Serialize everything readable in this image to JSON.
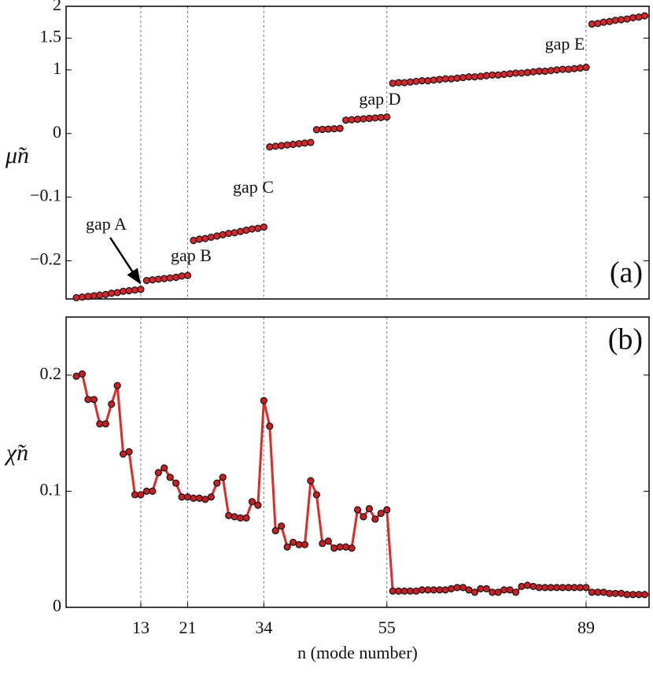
{
  "chart_data": [
    {
      "type": "scatter",
      "panel_label": "(a)",
      "ylabel": "μ̃n",
      "color": "#d7262b",
      "x": [
        2,
        3,
        4,
        5,
        6,
        7,
        8,
        9,
        10,
        11,
        12,
        13,
        14,
        15,
        16,
        17,
        18,
        19,
        20,
        21,
        22,
        23,
        24,
        25,
        26,
        27,
        28,
        29,
        30,
        31,
        32,
        33,
        34,
        35,
        36,
        37,
        38,
        39,
        40,
        41,
        42,
        43,
        44,
        45,
        46,
        47,
        48,
        49,
        50,
        51,
        52,
        53,
        54,
        55,
        56,
        57,
        58,
        59,
        60,
        61,
        62,
        63,
        64,
        65,
        66,
        67,
        68,
        69,
        70,
        71,
        72,
        73,
        74,
        75,
        76,
        77,
        78,
        79,
        80,
        81,
        82,
        83,
        84,
        85,
        86,
        87,
        88,
        89,
        90,
        91,
        92,
        93,
        94,
        95,
        96,
        97,
        98,
        99
      ],
      "values": [
        -0.258,
        -0.257,
        -0.256,
        -0.255,
        -0.254,
        -0.253,
        -0.251,
        -0.25,
        -0.248,
        -0.247,
        -0.246,
        -0.245,
        -0.231,
        -0.23,
        -0.229,
        -0.228,
        -0.227,
        -0.226,
        -0.224,
        -0.223,
        -0.168,
        -0.166,
        -0.165,
        -0.163,
        -0.161,
        -0.159,
        -0.157,
        -0.156,
        -0.154,
        -0.152,
        -0.15,
        -0.149,
        -0.147,
        -0.021,
        -0.02,
        -0.019,
        -0.018,
        -0.017,
        -0.016,
        -0.015,
        -0.014,
        0.06,
        0.065,
        0.07,
        0.075,
        0.08,
        0.21,
        0.217,
        0.224,
        0.231,
        0.238,
        0.245,
        0.252,
        0.26,
        0.79,
        0.8,
        0.8,
        0.81,
        0.82,
        0.83,
        0.83,
        0.84,
        0.85,
        0.86,
        0.86,
        0.87,
        0.88,
        0.89,
        0.89,
        0.9,
        0.91,
        0.92,
        0.92,
        0.93,
        0.94,
        0.95,
        0.95,
        0.96,
        0.97,
        0.98,
        0.98,
        0.99,
        1.0,
        1.01,
        1.01,
        1.02,
        1.03,
        1.04,
        1.72,
        1.73,
        1.75,
        1.76,
        1.78,
        1.79,
        1.8,
        1.82,
        1.83,
        1.85
      ],
      "xlim": [
        0.25,
        99.75
      ],
      "xticks": [
        13,
        21,
        34,
        55,
        89
      ],
      "ylim": [
        -0.26,
        2
      ],
      "yticks": [
        {
          "value": -0.2,
          "label": "−0.2"
        },
        {
          "value": -0.1,
          "label": "−0.1"
        },
        0,
        1,
        1.5,
        2
      ],
      "annotations": [
        "gap A",
        "gap B",
        "gap C",
        "gap D",
        "gap E"
      ]
    },
    {
      "type": "line",
      "panel_label": "(b)",
      "ylabel": "χ̃n",
      "xlabel": "n (mode number)",
      "color": "#e02a2a",
      "x": [
        2,
        3,
        4,
        5,
        6,
        7,
        8,
        9,
        10,
        11,
        12,
        13,
        14,
        15,
        16,
        17,
        18,
        19,
        20,
        21,
        22,
        23,
        24,
        25,
        26,
        27,
        28,
        29,
        30,
        31,
        32,
        33,
        34,
        35,
        36,
        37,
        38,
        39,
        40,
        41,
        42,
        43,
        44,
        45,
        46,
        47,
        48,
        49,
        50,
        51,
        52,
        53,
        54,
        55,
        56,
        57,
        58,
        59,
        60,
        61,
        62,
        63,
        64,
        65,
        66,
        67,
        68,
        69,
        70,
        71,
        72,
        73,
        74,
        75,
        76,
        77,
        78,
        79,
        80,
        81,
        82,
        83,
        84,
        85,
        86,
        87,
        88,
        89,
        90,
        91,
        92,
        93,
        94,
        95,
        96,
        97,
        98,
        99
      ],
      "values": [
        0.199,
        0.201,
        0.179,
        0.179,
        0.158,
        0.158,
        0.175,
        0.191,
        0.132,
        0.134,
        0.097,
        0.097,
        0.1,
        0.1,
        0.116,
        0.12,
        0.112,
        0.107,
        0.095,
        0.095,
        0.094,
        0.094,
        0.093,
        0.095,
        0.107,
        0.112,
        0.079,
        0.078,
        0.077,
        0.077,
        0.091,
        0.088,
        0.178,
        0.156,
        0.066,
        0.07,
        0.052,
        0.056,
        0.054,
        0.054,
        0.109,
        0.097,
        0.055,
        0.057,
        0.051,
        0.052,
        0.052,
        0.051,
        0.084,
        0.078,
        0.085,
        0.076,
        0.081,
        0.084,
        0.014,
        0.014,
        0.014,
        0.014,
        0.014,
        0.015,
        0.015,
        0.015,
        0.015,
        0.015,
        0.016,
        0.017,
        0.017,
        0.015,
        0.013,
        0.016,
        0.016,
        0.013,
        0.013,
        0.015,
        0.015,
        0.013,
        0.018,
        0.019,
        0.018,
        0.017,
        0.017,
        0.017,
        0.017,
        0.017,
        0.017,
        0.017,
        0.017,
        0.017,
        0.013,
        0.013,
        0.013,
        0.012,
        0.012,
        0.012,
        0.011,
        0.011,
        0.011,
        0.011
      ],
      "xlim": [
        0.25,
        99.75
      ],
      "xticks": [
        13,
        21,
        34,
        55,
        89
      ],
      "ylim": [
        0,
        0.25
      ],
      "yticks": [
        0,
        0.1,
        0.2
      ]
    }
  ]
}
